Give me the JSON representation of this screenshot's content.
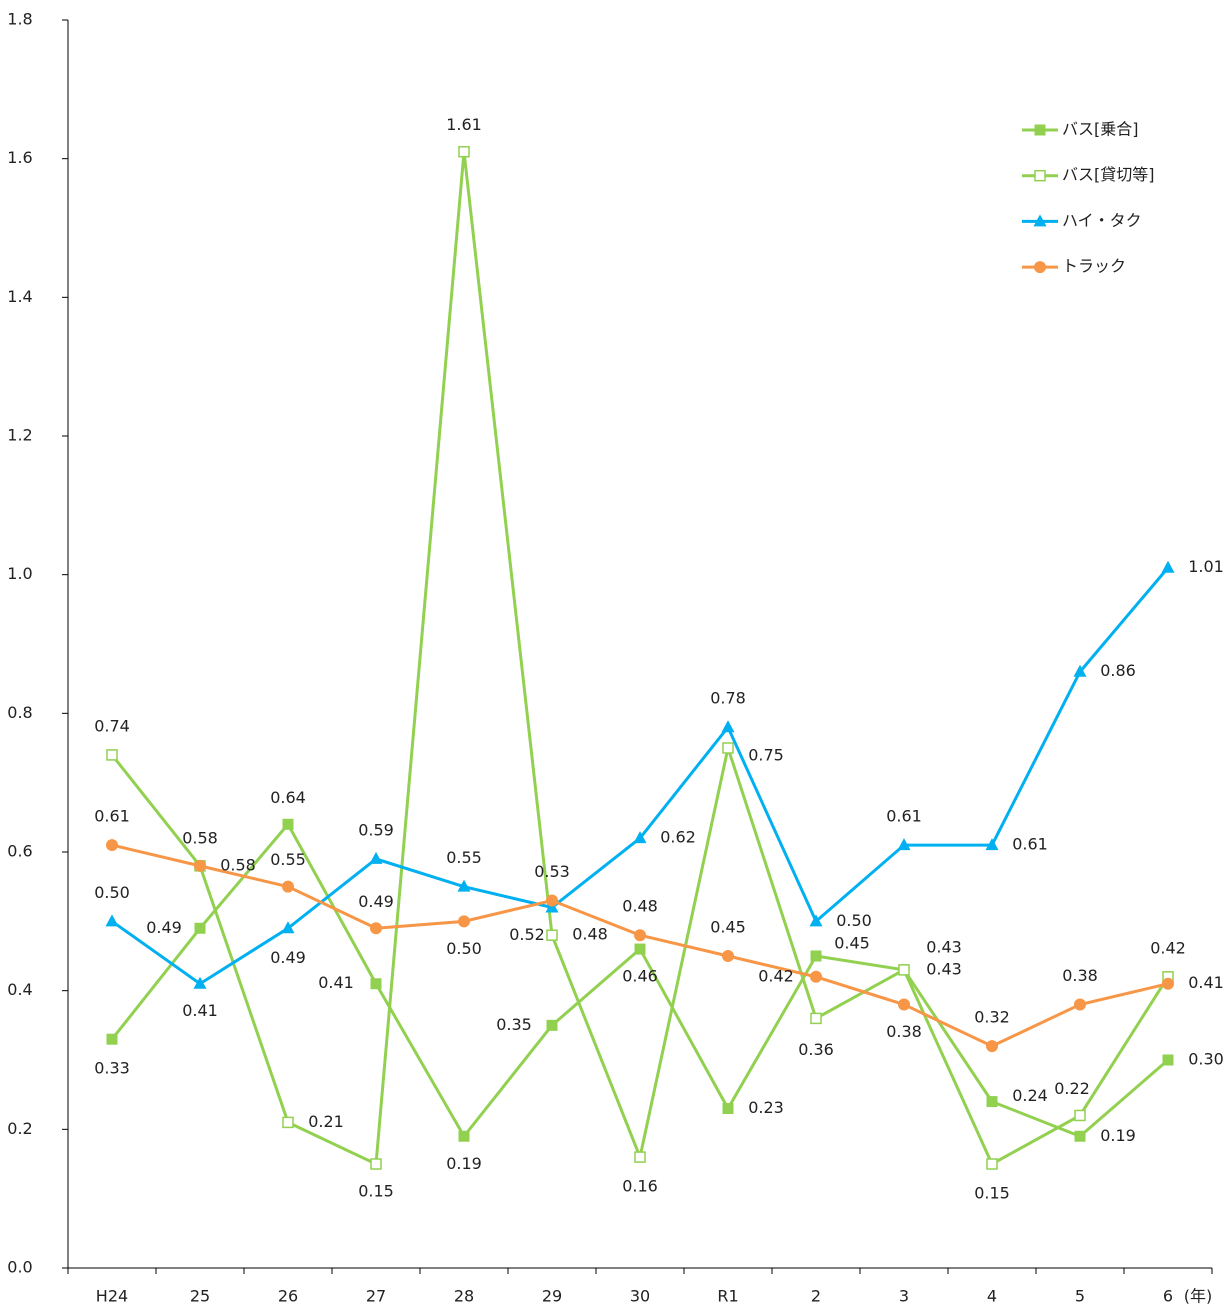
{
  "chart_data": {
    "type": "line",
    "categories": [
      "H24",
      "25",
      "26",
      "27",
      "28",
      "29",
      "30",
      "R1",
      "2",
      "3",
      "4",
      "5",
      "6"
    ],
    "xlabel": "(年)",
    "ylim": [
      0,
      1.8
    ],
    "yticks": [
      {
        "value": 0,
        "label": "0.0"
      },
      0.2,
      0.4,
      0.6,
      0.8,
      {
        "value": 1,
        "label": "1.0"
      },
      1.2,
      1.4,
      1.6,
      1.8
    ],
    "legend": "upper right",
    "series": [
      {
        "name": "バス[乗合]",
        "color": "#92d050",
        "marker": "square",
        "values": [
          0.33,
          0.49,
          0.64,
          0.41,
          0.19,
          0.35,
          0.46,
          0.23,
          0.45,
          0.43,
          0.24,
          0.19,
          0.3
        ],
        "value_labels": [
          "0.33",
          "0.49",
          "0.64",
          "0.41",
          "0.19",
          "0.35",
          "0.46",
          "0.23",
          "0.45",
          "0.43",
          "0.24",
          "0.19",
          "0.30"
        ]
      },
      {
        "name": "バス[貸切等]",
        "color": "#92d050",
        "marker": "square-open",
        "values": [
          0.74,
          0.58,
          0.21,
          0.15,
          1.61,
          0.48,
          0.16,
          0.75,
          0.36,
          0.43,
          0.15,
          0.22,
          0.42
        ],
        "value_labels": [
          "0.74",
          "0.58",
          "0.21",
          "0.15",
          "1.61",
          "0.48",
          "0.16",
          "0.75",
          "0.36",
          "0.43",
          "0.15",
          "0.22",
          "0.42"
        ]
      },
      {
        "name": "ハイ・タク",
        "color": "#00b0f0",
        "marker": "triangle",
        "values": [
          0.5,
          0.41,
          0.49,
          0.59,
          0.55,
          0.52,
          0.62,
          0.78,
          0.5,
          0.61,
          0.61,
          0.86,
          1.01
        ],
        "value_labels": [
          "0.50",
          "0.41",
          "0.49",
          "0.59",
          "0.55",
          "0.52",
          "0.62",
          "0.78",
          "0.50",
          "0.61",
          "0.61",
          "0.86",
          "1.01"
        ]
      },
      {
        "name": "トラック",
        "color": "#f79646",
        "marker": "circle",
        "values": [
          0.61,
          0.58,
          0.55,
          0.49,
          0.5,
          0.53,
          0.48,
          0.45,
          0.42,
          0.38,
          0.32,
          0.38,
          0.41
        ],
        "value_labels": [
          "0.61",
          "0.58",
          "0.55",
          "0.49",
          "0.50",
          "0.53",
          "0.48",
          "0.45",
          "0.42",
          "0.38",
          "0.32",
          "0.38",
          "0.41"
        ]
      }
    ]
  }
}
